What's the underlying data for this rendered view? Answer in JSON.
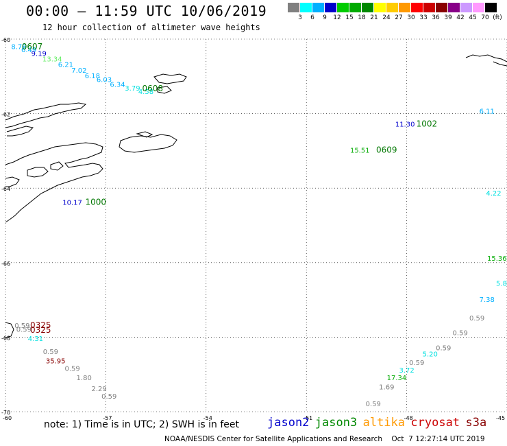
{
  "header": {
    "title": "00:00 – 11:59 UTC 10/06/2019",
    "subtitle": "12 hour collection of altimeter wave heights"
  },
  "scale": {
    "colors": [
      "#808080",
      "#00ffff",
      "#00b0ff",
      "#0000cc",
      "#00cc00",
      "#00aa00",
      "#008800",
      "#ffff00",
      "#ffcc00",
      "#ff9900",
      "#ff0000",
      "#cc0000",
      "#880000",
      "#880088",
      "#cc99ff",
      "#ff99ff",
      "#000000"
    ],
    "labels": [
      "3",
      "6",
      "9",
      "12",
      "15",
      "18",
      "21",
      "24",
      "27",
      "30",
      "33",
      "36",
      "39",
      "42",
      "45",
      "70",
      "(ft)"
    ]
  },
  "axes": {
    "lat_labels": [
      "-60",
      "-62",
      "-64",
      "-66",
      "-68",
      "-70"
    ],
    "lon_labels": [
      "-60",
      "-57",
      "-54",
      "-51",
      "-48",
      "-45"
    ]
  },
  "swh_labels": [
    {
      "text": "8.76",
      "color": "#00b0ff",
      "lon": -59.6,
      "lat": -60.27
    },
    {
      "text": "6.49",
      "color": "#00b0ff",
      "lon": -59.3,
      "lat": -60.35
    },
    {
      "text": "9.19",
      "color": "#0000cc",
      "lon": -59.0,
      "lat": -60.45
    },
    {
      "text": "13.34",
      "color": "#66ee66",
      "lon": -58.6,
      "lat": -60.6
    },
    {
      "text": "6.21",
      "color": "#00b0ff",
      "lon": -58.2,
      "lat": -60.75
    },
    {
      "text": "7.02",
      "color": "#00b0ff",
      "lon": -57.8,
      "lat": -60.9
    },
    {
      "text": "6.18",
      "color": "#00b0ff",
      "lon": -57.4,
      "lat": -61.05
    },
    {
      "text": "6.03",
      "color": "#00b0ff",
      "lon": -57.05,
      "lat": -61.15
    },
    {
      "text": "6.34",
      "color": "#00b0ff",
      "lon": -56.65,
      "lat": -61.28
    },
    {
      "text": "3.79",
      "color": "#00e0e0",
      "lon": -56.2,
      "lat": -61.38
    },
    {
      "text": "4.58",
      "color": "#00e0e0",
      "lon": -55.8,
      "lat": -61.47
    },
    {
      "text": "11.30",
      "color": "#0000cc",
      "lon": -48.05,
      "lat": -62.35
    },
    {
      "text": "6.11",
      "color": "#00b0ff",
      "lon": -45.6,
      "lat": -62.0
    },
    {
      "text": "15.51",
      "color": "#00aa00",
      "lon": -49.4,
      "lat": -63.05
    },
    {
      "text": "4.22",
      "color": "#00e0e0",
      "lon": -45.4,
      "lat": -64.2
    },
    {
      "text": "10.17",
      "color": "#0000cc",
      "lon": -58.0,
      "lat": -64.45
    },
    {
      "text": "15.36",
      "color": "#00aa00",
      "lon": -45.3,
      "lat": -65.95
    },
    {
      "text": "5.8",
      "color": "#00e0e0",
      "lon": -45.1,
      "lat": -66.62
    },
    {
      "text": "7.38",
      "color": "#00b0ff",
      "lon": -45.6,
      "lat": -67.05
    },
    {
      "text": "0.59",
      "color": "#808080",
      "lon": -45.9,
      "lat": -67.55
    },
    {
      "text": "0.59",
      "color": "#808080",
      "lon": -59.5,
      "lat": -67.75
    },
    {
      "text": "0.59",
      "color": "#808080",
      "lon": -46.4,
      "lat": -67.95
    },
    {
      "text": "0.59",
      "color": "#808080",
      "lon": -59.45,
      "lat": -67.85
    },
    {
      "text": "4.31",
      "color": "#00e0e0",
      "lon": -59.1,
      "lat": -68.1
    },
    {
      "text": "0.59",
      "color": "#808080",
      "lon": -46.9,
      "lat": -68.35
    },
    {
      "text": "0.59",
      "color": "#808080",
      "lon": -58.65,
      "lat": -68.45
    },
    {
      "text": "5.20",
      "color": "#00e0e0",
      "lon": -47.3,
      "lat": -68.52
    },
    {
      "text": "35.95",
      "color": "#880000",
      "lon": -58.5,
      "lat": -68.7
    },
    {
      "text": "0.59",
      "color": "#808080",
      "lon": -47.7,
      "lat": -68.75
    },
    {
      "text": "0.59",
      "color": "#808080",
      "lon": -58.0,
      "lat": -68.9
    },
    {
      "text": "3.72",
      "color": "#00e0e0",
      "lon": -48.0,
      "lat": -68.95
    },
    {
      "text": "1.80",
      "color": "#808080",
      "lon": -57.65,
      "lat": -69.15
    },
    {
      "text": "17.34",
      "color": "#00aa00",
      "lon": -48.3,
      "lat": -69.15
    },
    {
      "text": "1.69",
      "color": "#808080",
      "lon": -48.6,
      "lat": -69.4
    },
    {
      "text": "2.29",
      "color": "#808080",
      "lon": -57.2,
      "lat": -69.45
    },
    {
      "text": "0.59",
      "color": "#808080",
      "lon": -56.9,
      "lat": -69.65
    },
    {
      "text": "0.59",
      "color": "#808080",
      "lon": -49.0,
      "lat": -69.85
    }
  ],
  "time_labels": [
    {
      "text": "0607",
      "color": "#007700",
      "lon": -59.2,
      "lat": -60.28
    },
    {
      "text": "0608",
      "color": "#007700",
      "lon": -55.6,
      "lat": -61.4
    },
    {
      "text": "1002",
      "color": "#007700",
      "lon": -47.4,
      "lat": -62.35
    },
    {
      "text": "0609",
      "color": "#007700",
      "lon": -48.6,
      "lat": -63.05
    },
    {
      "text": "1000",
      "color": "#007700",
      "lon": -57.3,
      "lat": -64.45
    },
    {
      "text": "0325",
      "color": "#880000",
      "lon": -58.95,
      "lat": -67.75
    },
    {
      "text": "0325",
      "color": "#880000",
      "lon": -58.95,
      "lat": -67.88
    }
  ],
  "footer": {
    "note": "note: 1) Time is in UTC; 2) SWH is in feet",
    "satellites": [
      {
        "name": "jason2",
        "color": "#0000cc"
      },
      {
        "name": "jason3",
        "color": "#008800"
      },
      {
        "name": "altika",
        "color": "#ff9900"
      },
      {
        "name": "cryosat",
        "color": "#cc0000"
      },
      {
        "name": "s3a",
        "color": "#880000"
      }
    ],
    "credit": "NOAA/NESDIS Center for Satellite Applications and Research    Oct  7 12:27:14 UTC 2019"
  }
}
